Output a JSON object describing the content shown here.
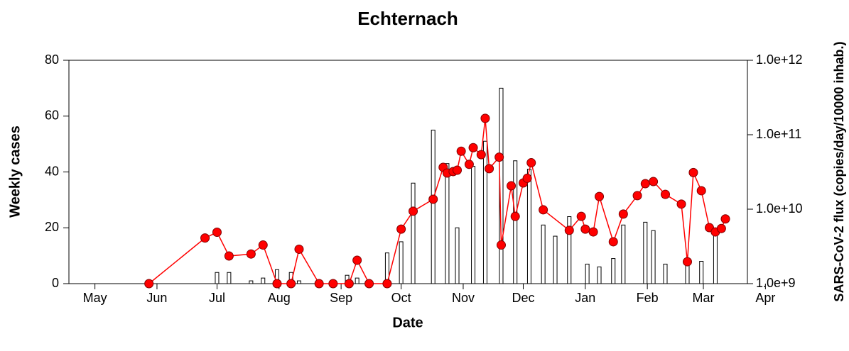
{
  "chart_data": {
    "type": "combo",
    "title": "Echternach",
    "xlabel": "Date",
    "ylabel": "Weekly cases",
    "y2label": "SARS-CoV-2 flux (copies/day/10000 inhab.)",
    "xlim": [
      -13,
      326
    ],
    "xticks": [
      {
        "value": 0,
        "label": "May"
      },
      {
        "value": 31,
        "label": "Jun"
      },
      {
        "value": 61,
        "label": "Jul"
      },
      {
        "value": 92,
        "label": "Aug"
      },
      {
        "value": 123,
        "label": "Sep"
      },
      {
        "value": 153,
        "label": "Oct"
      },
      {
        "value": 184,
        "label": "Nov"
      },
      {
        "value": 214,
        "label": "Dec"
      },
      {
        "value": 245,
        "label": "Jan"
      },
      {
        "value": 276,
        "label": "Feb"
      },
      {
        "value": 304,
        "label": "Mar"
      },
      {
        "value": 335,
        "label": "Apr"
      }
    ],
    "ylim": [
      0,
      80
    ],
    "yticks": [
      0,
      20,
      40,
      60,
      80
    ],
    "y2lim": [
      1000000000,
      1000000000000
    ],
    "y2scale": "log",
    "y2ticks": [
      {
        "value": 1000000000,
        "label": "1.0e+9"
      },
      {
        "value": 10000000000,
        "label": "1.0e+10"
      },
      {
        "value": 100000000000,
        "label": "1.0e+11"
      },
      {
        "value": 1000000000000,
        "label": "1.0e+12"
      }
    ],
    "series": [
      {
        "type": "bar",
        "color": "#ffffff",
        "edgecolor": "#000000",
        "x": [
          61,
          67,
          78,
          84,
          91,
          98,
          102,
          126,
          131,
          146,
          153,
          159,
          169,
          176,
          181,
          189,
          195,
          203,
          210,
          217,
          224,
          230,
          237,
          246,
          252,
          259,
          264,
          275,
          279,
          285,
          296,
          303,
          310
        ],
        "values": [
          4,
          4,
          1,
          2,
          5,
          4,
          1,
          3,
          2,
          11,
          15,
          36,
          55,
          43,
          20,
          42,
          51,
          70,
          44,
          41,
          21,
          17,
          24,
          7,
          6,
          9,
          21,
          22,
          19,
          7,
          9,
          8,
          19
        ]
      },
      {
        "type": "line",
        "axis": "y2",
        "color": "#ff0000",
        "edgecolor": "#800000",
        "x": [
          27,
          55,
          61,
          67,
          78,
          84,
          91,
          98,
          102,
          112,
          119,
          127,
          131,
          137,
          146,
          153,
          159,
          169,
          174,
          176,
          179,
          181,
          183,
          187,
          189,
          193,
          195,
          197,
          202,
          203,
          208,
          210,
          214,
          216,
          218,
          224,
          237,
          243,
          245,
          249,
          252,
          259,
          264,
          271,
          275,
          279,
          285,
          293,
          296,
          299,
          303,
          307,
          310,
          313,
          315
        ],
        "values": [
          1000000000,
          4100000000,
          4900000000,
          2350000000,
          2500000000,
          3300000000,
          1000000000,
          1000000000,
          2900000000,
          1000000000,
          1000000000,
          1000000000,
          2060000000,
          1000000000,
          1000000000,
          5400000000,
          9400000000,
          13600000000,
          36500000000,
          30600000000,
          32000000000,
          33400000000,
          60000000000,
          40000000000,
          67000000000,
          54000000000,
          166000000000,
          35000000000,
          50000000000,
          3300000000,
          20600000000,
          8000000000,
          22500000000,
          26000000000,
          42000000000,
          9800000000,
          5200000000,
          8000000000,
          5400000000,
          4950000000,
          14800000000,
          3650000000,
          8600000000,
          15200000000,
          22000000000,
          23500000000,
          15800000000,
          11700000000,
          1970000000,
          31000000000,
          17700000000,
          5650000000,
          4950000000,
          5500000000,
          7400000000
        ]
      }
    ]
  }
}
